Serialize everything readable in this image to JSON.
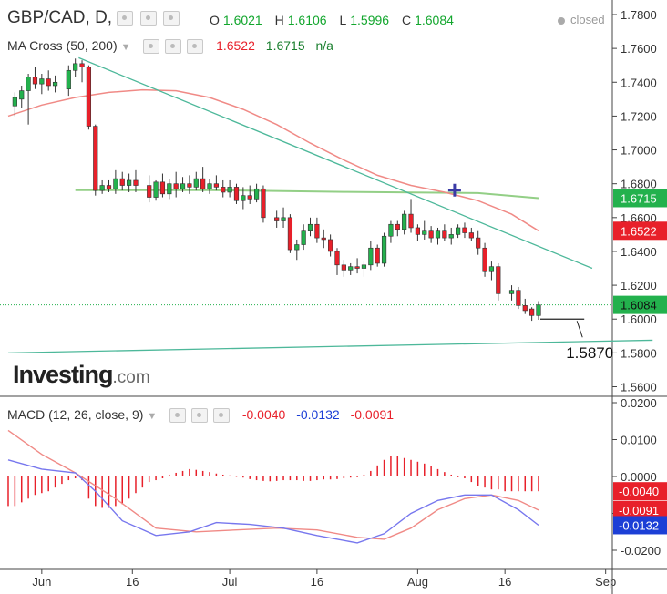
{
  "header": {
    "symbol": "GBP/CAD, D,",
    "ohlc": [
      {
        "key": "O",
        "value": "1.6021"
      },
      {
        "key": "H",
        "value": "1.6106"
      },
      {
        "key": "L",
        "value": "1.5996"
      },
      {
        "key": "C",
        "value": "1.6084"
      }
    ],
    "status": "closed"
  },
  "ma_indicator": {
    "label": "MA Cross (50, 200)",
    "values": [
      "1.6522",
      "1.6715",
      "n/a"
    ]
  },
  "macd_indicator": {
    "label": "MACD (12, 26, close, 9)",
    "values": [
      "-0.0040",
      "-0.0132",
      "-0.0091"
    ]
  },
  "logo": {
    "brand": "Investing",
    "suffix": ".com"
  },
  "annotation": "1.5870",
  "colors": {
    "up": "#23b14d",
    "down": "#e8202a",
    "ma50": "#f08a86",
    "ma200": "#93cf86",
    "trendline": "#4db89a",
    "macd_line": "#7777ee",
    "signal_line": "#f08a86",
    "hist_up": "#e8202a",
    "hist_down": "#e8202a",
    "close_line": "#23b14d"
  },
  "chart_data": [
    {
      "type": "candlestick",
      "title": "GBP/CAD, D,",
      "y_ticks": [
        "1.7800",
        "1.7600",
        "1.7400",
        "1.7200",
        "1.7000",
        "1.6800",
        "1.6600",
        "1.6400",
        "1.6200",
        "1.6000",
        "1.5800",
        "1.5600"
      ],
      "x_ticks": [
        "Jun",
        "16",
        "Jul",
        "16",
        "Aug",
        "16",
        "Sep"
      ],
      "ylim": [
        1.553,
        1.786
      ],
      "xlim": [
        0,
        96
      ],
      "x_tick_positions": [
        5,
        18.5,
        33,
        46,
        61,
        74,
        89
      ],
      "candles": [
        {
          "i": 1,
          "o": 1.726,
          "h": 1.734,
          "l": 1.72,
          "c": 1.731
        },
        {
          "i": 2,
          "o": 1.73,
          "h": 1.738,
          "l": 1.725,
          "c": 1.735
        },
        {
          "i": 3,
          "o": 1.735,
          "h": 1.745,
          "l": 1.715,
          "c": 1.743
        },
        {
          "i": 4,
          "o": 1.743,
          "h": 1.749,
          "l": 1.736,
          "c": 1.739
        },
        {
          "i": 5,
          "o": 1.739,
          "h": 1.745,
          "l": 1.733,
          "c": 1.742
        },
        {
          "i": 6,
          "o": 1.742,
          "h": 1.747,
          "l": 1.735,
          "c": 1.738
        },
        {
          "i": 7,
          "o": 1.738,
          "h": 1.744,
          "l": 1.734,
          "c": 1.74
        },
        {
          "i": 9,
          "o": 1.736,
          "h": 1.75,
          "l": 1.732,
          "c": 1.747
        },
        {
          "i": 10,
          "o": 1.747,
          "h": 1.754,
          "l": 1.743,
          "c": 1.751
        },
        {
          "i": 11,
          "o": 1.751,
          "h": 1.753,
          "l": 1.74,
          "c": 1.749
        },
        {
          "i": 12,
          "o": 1.749,
          "h": 1.75,
          "l": 1.712,
          "c": 1.714
        },
        {
          "i": 13,
          "o": 1.714,
          "h": 1.715,
          "l": 1.673,
          "c": 1.676
        },
        {
          "i": 14,
          "o": 1.676,
          "h": 1.682,
          "l": 1.674,
          "c": 1.679
        },
        {
          "i": 15,
          "o": 1.679,
          "h": 1.682,
          "l": 1.675,
          "c": 1.677
        },
        {
          "i": 16,
          "o": 1.677,
          "h": 1.688,
          "l": 1.674,
          "c": 1.683
        },
        {
          "i": 17,
          "o": 1.683,
          "h": 1.687,
          "l": 1.676,
          "c": 1.679
        },
        {
          "i": 18,
          "o": 1.679,
          "h": 1.686,
          "l": 1.675,
          "c": 1.682
        },
        {
          "i": 19,
          "o": 1.682,
          "h": 1.688,
          "l": 1.675,
          "c": 1.679
        },
        {
          "i": 21,
          "o": 1.679,
          "h": 1.685,
          "l": 1.669,
          "c": 1.672
        },
        {
          "i": 22,
          "o": 1.672,
          "h": 1.682,
          "l": 1.67,
          "c": 1.681
        },
        {
          "i": 23,
          "o": 1.681,
          "h": 1.686,
          "l": 1.672,
          "c": 1.674
        },
        {
          "i": 24,
          "o": 1.674,
          "h": 1.683,
          "l": 1.671,
          "c": 1.68
        },
        {
          "i": 25,
          "o": 1.68,
          "h": 1.687,
          "l": 1.672,
          "c": 1.677
        },
        {
          "i": 26,
          "o": 1.677,
          "h": 1.684,
          "l": 1.675,
          "c": 1.68
        },
        {
          "i": 27,
          "o": 1.68,
          "h": 1.685,
          "l": 1.674,
          "c": 1.678
        },
        {
          "i": 28,
          "o": 1.678,
          "h": 1.687,
          "l": 1.676,
          "c": 1.683
        },
        {
          "i": 29,
          "o": 1.683,
          "h": 1.69,
          "l": 1.675,
          "c": 1.677
        },
        {
          "i": 30,
          "o": 1.677,
          "h": 1.683,
          "l": 1.674,
          "c": 1.68
        },
        {
          "i": 31,
          "o": 1.68,
          "h": 1.685,
          "l": 1.676,
          "c": 1.678
        },
        {
          "i": 32,
          "o": 1.678,
          "h": 1.682,
          "l": 1.672,
          "c": 1.675
        },
        {
          "i": 33,
          "o": 1.675,
          "h": 1.682,
          "l": 1.672,
          "c": 1.678
        },
        {
          "i": 34,
          "o": 1.678,
          "h": 1.68,
          "l": 1.668,
          "c": 1.67
        },
        {
          "i": 35,
          "o": 1.67,
          "h": 1.678,
          "l": 1.665,
          "c": 1.673
        },
        {
          "i": 36,
          "o": 1.673,
          "h": 1.679,
          "l": 1.668,
          "c": 1.671
        },
        {
          "i": 37,
          "o": 1.671,
          "h": 1.68,
          "l": 1.669,
          "c": 1.677
        },
        {
          "i": 38,
          "o": 1.677,
          "h": 1.679,
          "l": 1.657,
          "c": 1.66
        },
        {
          "i": 40,
          "o": 1.66,
          "h": 1.664,
          "l": 1.654,
          "c": 1.658
        },
        {
          "i": 41,
          "o": 1.658,
          "h": 1.666,
          "l": 1.654,
          "c": 1.66
        },
        {
          "i": 42,
          "o": 1.66,
          "h": 1.662,
          "l": 1.639,
          "c": 1.641
        },
        {
          "i": 43,
          "o": 1.641,
          "h": 1.647,
          "l": 1.635,
          "c": 1.644
        },
        {
          "i": 44,
          "o": 1.644,
          "h": 1.656,
          "l": 1.641,
          "c": 1.652
        },
        {
          "i": 45,
          "o": 1.652,
          "h": 1.66,
          "l": 1.649,
          "c": 1.656
        },
        {
          "i": 46,
          "o": 1.656,
          "h": 1.66,
          "l": 1.645,
          "c": 1.648
        },
        {
          "i": 47,
          "o": 1.648,
          "h": 1.653,
          "l": 1.642,
          "c": 1.647
        },
        {
          "i": 48,
          "o": 1.647,
          "h": 1.65,
          "l": 1.637,
          "c": 1.64
        },
        {
          "i": 49,
          "o": 1.64,
          "h": 1.642,
          "l": 1.626,
          "c": 1.632
        },
        {
          "i": 50,
          "o": 1.632,
          "h": 1.635,
          "l": 1.625,
          "c": 1.629
        },
        {
          "i": 51,
          "o": 1.629,
          "h": 1.633,
          "l": 1.626,
          "c": 1.631
        },
        {
          "i": 52,
          "o": 1.631,
          "h": 1.636,
          "l": 1.627,
          "c": 1.63
        },
        {
          "i": 53,
          "o": 1.63,
          "h": 1.634,
          "l": 1.625,
          "c": 1.632
        },
        {
          "i": 54,
          "o": 1.632,
          "h": 1.646,
          "l": 1.629,
          "c": 1.642
        },
        {
          "i": 55,
          "o": 1.642,
          "h": 1.644,
          "l": 1.631,
          "c": 1.633
        },
        {
          "i": 56,
          "o": 1.633,
          "h": 1.651,
          "l": 1.631,
          "c": 1.649
        },
        {
          "i": 57,
          "o": 1.649,
          "h": 1.658,
          "l": 1.645,
          "c": 1.656
        },
        {
          "i": 58,
          "o": 1.656,
          "h": 1.658,
          "l": 1.649,
          "c": 1.653
        },
        {
          "i": 59,
          "o": 1.653,
          "h": 1.664,
          "l": 1.65,
          "c": 1.662
        },
        {
          "i": 60,
          "o": 1.662,
          "h": 1.671,
          "l": 1.651,
          "c": 1.654
        },
        {
          "i": 61,
          "o": 1.654,
          "h": 1.656,
          "l": 1.646,
          "c": 1.65
        },
        {
          "i": 62,
          "o": 1.65,
          "h": 1.658,
          "l": 1.647,
          "c": 1.652
        },
        {
          "i": 63,
          "o": 1.652,
          "h": 1.655,
          "l": 1.645,
          "c": 1.648
        },
        {
          "i": 64,
          "o": 1.648,
          "h": 1.654,
          "l": 1.644,
          "c": 1.652
        },
        {
          "i": 65,
          "o": 1.652,
          "h": 1.656,
          "l": 1.646,
          "c": 1.648
        },
        {
          "i": 66,
          "o": 1.648,
          "h": 1.654,
          "l": 1.644,
          "c": 1.65
        },
        {
          "i": 67,
          "o": 1.65,
          "h": 1.656,
          "l": 1.648,
          "c": 1.654
        },
        {
          "i": 68,
          "o": 1.654,
          "h": 1.657,
          "l": 1.648,
          "c": 1.651
        },
        {
          "i": 69,
          "o": 1.651,
          "h": 1.654,
          "l": 1.646,
          "c": 1.648
        },
        {
          "i": 70,
          "o": 1.648,
          "h": 1.652,
          "l": 1.638,
          "c": 1.642
        },
        {
          "i": 71,
          "o": 1.642,
          "h": 1.645,
          "l": 1.625,
          "c": 1.628
        },
        {
          "i": 72,
          "o": 1.628,
          "h": 1.634,
          "l": 1.623,
          "c": 1.631
        },
        {
          "i": 73,
          "o": 1.631,
          "h": 1.633,
          "l": 1.611,
          "c": 1.615
        },
        {
          "i": 75,
          "o": 1.615,
          "h": 1.62,
          "l": 1.611,
          "c": 1.617
        },
        {
          "i": 76,
          "o": 1.617,
          "h": 1.619,
          "l": 1.606,
          "c": 1.608
        },
        {
          "i": 77,
          "o": 1.608,
          "h": 1.612,
          "l": 1.603,
          "c": 1.605
        },
        {
          "i": 78,
          "o": 1.606,
          "h": 1.607,
          "l": 1.599,
          "c": 1.6021
        },
        {
          "i": 79,
          "o": 1.6021,
          "h": 1.6106,
          "l": 1.5996,
          "c": 1.6084
        }
      ],
      "ma50": [
        {
          "i": 0,
          "y": 1.72
        },
        {
          "i": 5,
          "y": 1.7265
        },
        {
          "i": 10,
          "y": 1.731
        },
        {
          "i": 15,
          "y": 1.734
        },
        {
          "i": 20,
          "y": 1.7355
        },
        {
          "i": 25,
          "y": 1.735
        },
        {
          "i": 30,
          "y": 1.731
        },
        {
          "i": 35,
          "y": 1.724
        },
        {
          "i": 40,
          "y": 1.715
        },
        {
          "i": 45,
          "y": 1.704
        },
        {
          "i": 50,
          "y": 1.694
        },
        {
          "i": 55,
          "y": 1.685
        },
        {
          "i": 60,
          "y": 1.679
        },
        {
          "i": 65,
          "y": 1.675
        },
        {
          "i": 70,
          "y": 1.67
        },
        {
          "i": 75,
          "y": 1.662
        },
        {
          "i": 79,
          "y": 1.6522
        }
      ],
      "ma200": [
        {
          "i": 10,
          "y": 1.6762
        },
        {
          "i": 30,
          "y": 1.6762
        },
        {
          "i": 50,
          "y": 1.6752
        },
        {
          "i": 70,
          "y": 1.6745
        },
        {
          "i": 79,
          "y": 1.6715
        }
      ],
      "trendlines": [
        {
          "points": [
            {
              "i": 10.5,
              "y": 1.7545
            },
            {
              "i": 87,
              "y": 1.63
            }
          ]
        },
        {
          "points": [
            {
              "i": 0,
              "y": 1.58
            },
            {
              "i": 96,
              "y": 1.5875
            }
          ]
        }
      ],
      "crossover_marker": {
        "i": 66.5,
        "y": 1.6762
      },
      "support_marker": {
        "i": 79,
        "y": 1.6,
        "i_end": 85,
        "label_value": 1.587
      },
      "last_price": 1.6084,
      "price_tags": [
        {
          "value": 1.6715,
          "text": "1.6715",
          "series": "ma200"
        },
        {
          "value": 1.6522,
          "text": "1.6522",
          "series": "ma50"
        },
        {
          "value": 1.6084,
          "text": "1.6084",
          "series": "close"
        }
      ]
    },
    {
      "type": "line",
      "title": "MACD (12, 26, close, 9)",
      "y_ticks": [
        "0.0200",
        "0.0100",
        "0.0000",
        "-0.0100",
        "-0.0200"
      ],
      "ylim": [
        -0.023,
        0.021
      ],
      "macd": [
        {
          "i": 0,
          "y": 0.0045
        },
        {
          "i": 5,
          "y": 0.002
        },
        {
          "i": 10,
          "y": 0.001
        },
        {
          "i": 13,
          "y": -0.004
        },
        {
          "i": 17,
          "y": -0.012
        },
        {
          "i": 22,
          "y": -0.016
        },
        {
          "i": 27,
          "y": -0.015
        },
        {
          "i": 31,
          "y": -0.0125
        },
        {
          "i": 36,
          "y": -0.013
        },
        {
          "i": 41,
          "y": -0.014
        },
        {
          "i": 46,
          "y": -0.016
        },
        {
          "i": 52,
          "y": -0.018
        },
        {
          "i": 56,
          "y": -0.0155
        },
        {
          "i": 60,
          "y": -0.01
        },
        {
          "i": 64,
          "y": -0.0065
        },
        {
          "i": 68,
          "y": -0.005
        },
        {
          "i": 72,
          "y": -0.005
        },
        {
          "i": 76,
          "y": -0.009
        },
        {
          "i": 79,
          "y": -0.0132
        }
      ],
      "signal": [
        {
          "i": 0,
          "y": 0.0125
        },
        {
          "i": 5,
          "y": 0.006
        },
        {
          "i": 10,
          "y": 0.001
        },
        {
          "i": 16,
          "y": -0.006
        },
        {
          "i": 22,
          "y": -0.014
        },
        {
          "i": 28,
          "y": -0.015
        },
        {
          "i": 34,
          "y": -0.0145
        },
        {
          "i": 40,
          "y": -0.014
        },
        {
          "i": 46,
          "y": -0.0145
        },
        {
          "i": 52,
          "y": -0.0165
        },
        {
          "i": 56,
          "y": -0.017
        },
        {
          "i": 60,
          "y": -0.014
        },
        {
          "i": 64,
          "y": -0.009
        },
        {
          "i": 68,
          "y": -0.006
        },
        {
          "i": 72,
          "y": -0.005
        },
        {
          "i": 76,
          "y": -0.0065
        },
        {
          "i": 79,
          "y": -0.0091
        }
      ],
      "histogram": [
        -0.008,
        -0.008,
        -0.007,
        -0.006,
        -0.005,
        -0.0045,
        -0.004,
        -0.003,
        -0.002,
        -0.001,
        -0.0005,
        -0.001,
        -0.006,
        -0.008,
        -0.0085,
        -0.0085,
        -0.008,
        -0.0075,
        -0.006,
        -0.0045,
        -0.003,
        -0.0015,
        -0.001,
        -0.0005,
        0.0005,
        0.001,
        0.0015,
        0.002,
        0.0018,
        0.0015,
        0.0012,
        0.0008,
        0.0005,
        0.0003,
        0.0001,
        -0.0003,
        -0.0007,
        -0.001,
        -0.0012,
        -0.0013,
        -0.0012,
        -0.001,
        -0.001,
        -0.001,
        -0.0012,
        -0.0012,
        -0.001,
        -0.0008,
        -0.0008,
        -0.0007,
        -0.0005,
        -0.0003,
        -0.0001,
        0.0005,
        0.0015,
        0.003,
        0.0045,
        0.0055,
        0.0055,
        0.005,
        0.0045,
        0.004,
        0.0035,
        0.0028,
        0.002,
        0.0012,
        0.0005,
        0.0,
        -0.0005,
        -0.0015,
        -0.0025,
        -0.003,
        -0.0035,
        -0.0035,
        -0.004,
        -0.004,
        -0.004,
        -0.004,
        -0.004,
        -0.004
      ],
      "price_tags": [
        {
          "value": -0.004,
          "text": "-0.0040",
          "series": "histogram"
        },
        {
          "value": -0.0091,
          "text": "-0.0091",
          "series": "signal"
        },
        {
          "value": -0.0132,
          "text": "-0.0132",
          "series": "macd"
        }
      ]
    }
  ]
}
